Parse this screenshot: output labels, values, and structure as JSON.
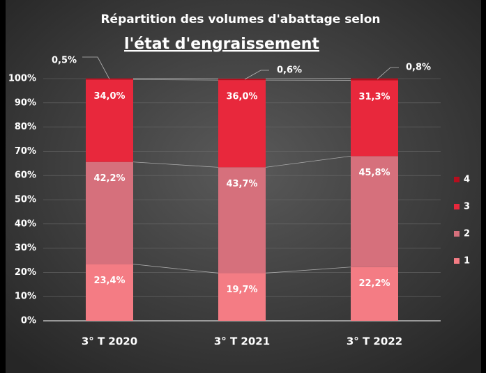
{
  "chart_data": {
    "type": "stacked_bar",
    "title": "Répartition des volumes d'abattage selon",
    "subtitle": "l'état d'engraissement",
    "categories": [
      "3° T 2020",
      "3° T 2021",
      "3° T 2022"
    ],
    "series": [
      {
        "name": "1",
        "color": "#f47c84",
        "values": [
          23.4,
          19.7,
          22.2
        ],
        "value_labels": [
          "23,4%",
          "19,7%",
          "22,2%"
        ]
      },
      {
        "name": "2",
        "color": "#d6707c",
        "values": [
          42.2,
          43.7,
          45.8
        ],
        "value_labels": [
          "42,2%",
          "43,7%",
          "45,8%"
        ]
      },
      {
        "name": "3",
        "color": "#e8283c",
        "values": [
          34.0,
          36.0,
          31.3
        ],
        "value_labels": [
          "34,0%",
          "36,0%",
          "31,3%"
        ]
      },
      {
        "name": "4",
        "color": "#b50e1e",
        "values": [
          0.5,
          0.6,
          0.8
        ],
        "value_labels": [
          "0,5%",
          "0,6%",
          "0,8%"
        ]
      }
    ],
    "ylim": [
      0,
      100
    ],
    "yticks": [
      {
        "value": 0,
        "label": "0%"
      },
      {
        "value": 10,
        "label": "10%"
      },
      {
        "value": 20,
        "label": "20%"
      },
      {
        "value": 30,
        "label": "30%"
      },
      {
        "value": 40,
        "label": "40%"
      },
      {
        "value": 50,
        "label": "50%"
      },
      {
        "value": 60,
        "label": "60%"
      },
      {
        "value": 70,
        "label": "70%"
      },
      {
        "value": 80,
        "label": "80%"
      },
      {
        "value": 90,
        "label": "90%"
      },
      {
        "value": 100,
        "label": "100%"
      }
    ],
    "grid": true,
    "legend": "right"
  }
}
